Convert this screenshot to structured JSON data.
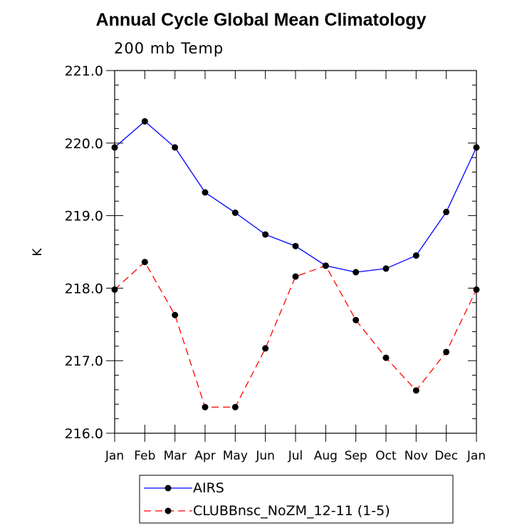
{
  "chart_data": {
    "type": "line",
    "title": "Annual Cycle Global Mean Climatology",
    "subtitle": "200 mb Temp",
    "xlabel": "",
    "ylabel": "K",
    "ylim": [
      216.0,
      221.0
    ],
    "yticks": [
      "216.0",
      "217.0",
      "218.0",
      "219.0",
      "220.0",
      "221.0"
    ],
    "categories": [
      "Jan",
      "Feb",
      "Mar",
      "Apr",
      "May",
      "Jun",
      "Jul",
      "Aug",
      "Sep",
      "Oct",
      "Nov",
      "Dec",
      "Jan"
    ],
    "series": [
      {
        "name": "AIRS",
        "color": "#0000ff",
        "dash": "solid",
        "values": [
          219.94,
          220.3,
          219.94,
          219.32,
          219.04,
          218.74,
          218.58,
          218.31,
          218.22,
          218.27,
          218.45,
          219.05,
          219.94
        ]
      },
      {
        "name": "CLUBBnsc_NoZM_12-11 (1-5)",
        "color": "#ff0000",
        "dash": "dashed",
        "values": [
          217.98,
          218.36,
          217.63,
          216.36,
          216.36,
          217.17,
          218.16,
          218.31,
          217.56,
          217.04,
          216.59,
          217.12,
          217.98
        ]
      }
    ],
    "legend_position": "bottom"
  }
}
